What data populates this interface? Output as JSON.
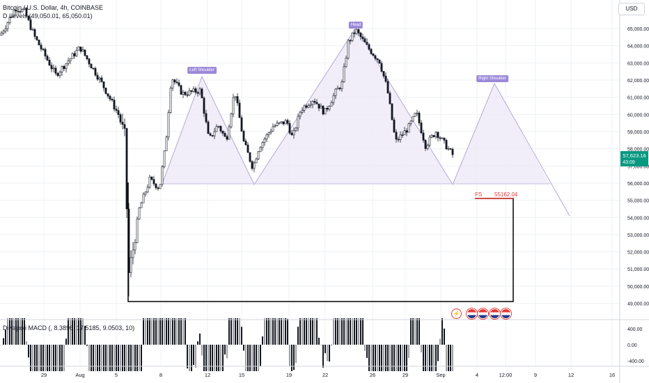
{
  "legend": {
    "symbol": "Bitcoin / U.S. Dollar, 4h, COINBASE",
    "indicator": "D Levels (49,050.01, 65,050.01)",
    "macd": "DiNapoli MACD (, 8.3896, 17.5185, 9.0503, 10)"
  },
  "currency_button": "USD",
  "price_axis": [
    "65,000.00",
    "64,000.00",
    "63,000.00",
    "62,000.00",
    "61,000.00",
    "60,000.00",
    "59,000.00",
    "58,000.00",
    "57,000.00",
    "56,000.00",
    "55,000.00",
    "54,000.00",
    "53,000.00",
    "52,000.00",
    "51,000.00",
    "50,000.00",
    "49,000.00"
  ],
  "current_price": {
    "value": "57,623.16",
    "countdown": "43:09",
    "color": "#089981"
  },
  "macd_axis": [
    "400.00",
    "0.00",
    "-400.00"
  ],
  "time_axis": [
    "29",
    "Aug",
    "5",
    "8",
    "12",
    "15",
    "19",
    "22",
    "26",
    "29",
    "Sep",
    "4",
    "12:00",
    "9",
    "12",
    "16"
  ],
  "pattern_labels": {
    "left_shoulder": "Left Shoulder",
    "head": "Head",
    "right_shoulder": "Right Shoulder"
  },
  "target": {
    "label": "FS",
    "value": "55162.04",
    "color": "#e53935"
  },
  "event_icons": [
    "bolt-icon",
    "us-flag-icon",
    "us-flag-icon",
    "us-flag-icon",
    "us-flag-icon"
  ],
  "colors": {
    "up": "#ffffff",
    "down": "#131722",
    "pattern_fill": "#ede7f6",
    "pattern_line": "#b3a7d6",
    "label_bg": "#9c89d8",
    "grid": "#eef0f3"
  }
}
